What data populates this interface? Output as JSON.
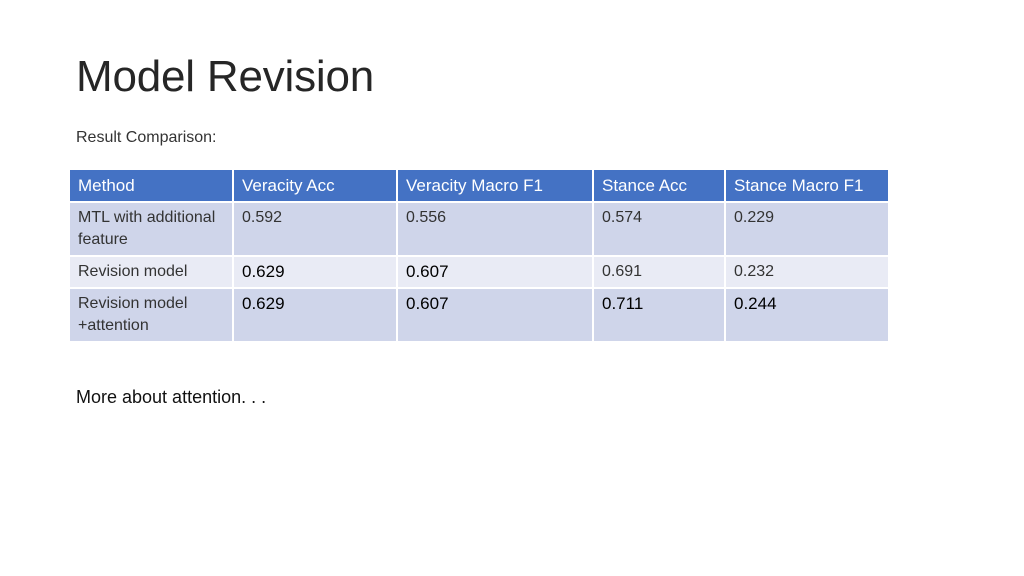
{
  "slide": {
    "title": "Model Revision",
    "subtitle": "Result Comparison:",
    "footer": "More about attention. . ."
  },
  "table": {
    "headers": [
      "Method",
      "Veracity Acc",
      "Veracity Macro F1",
      "Stance Acc",
      "Stance Macro F1"
    ],
    "rows": [
      [
        "MTL with additional feature",
        "0.592",
        "0.556",
        "0.574",
        "0.229"
      ],
      [
        "Revision model",
        "0.629",
        "0.607",
        "0.691",
        "0.232"
      ],
      [
        "Revision model +attention",
        "0.629",
        "0.607",
        "0.711",
        "0.244"
      ]
    ]
  },
  "colors": {
    "header_bg": "#4472c4",
    "row_dark": "#cfd5ea",
    "row_light": "#e9ebf5"
  }
}
